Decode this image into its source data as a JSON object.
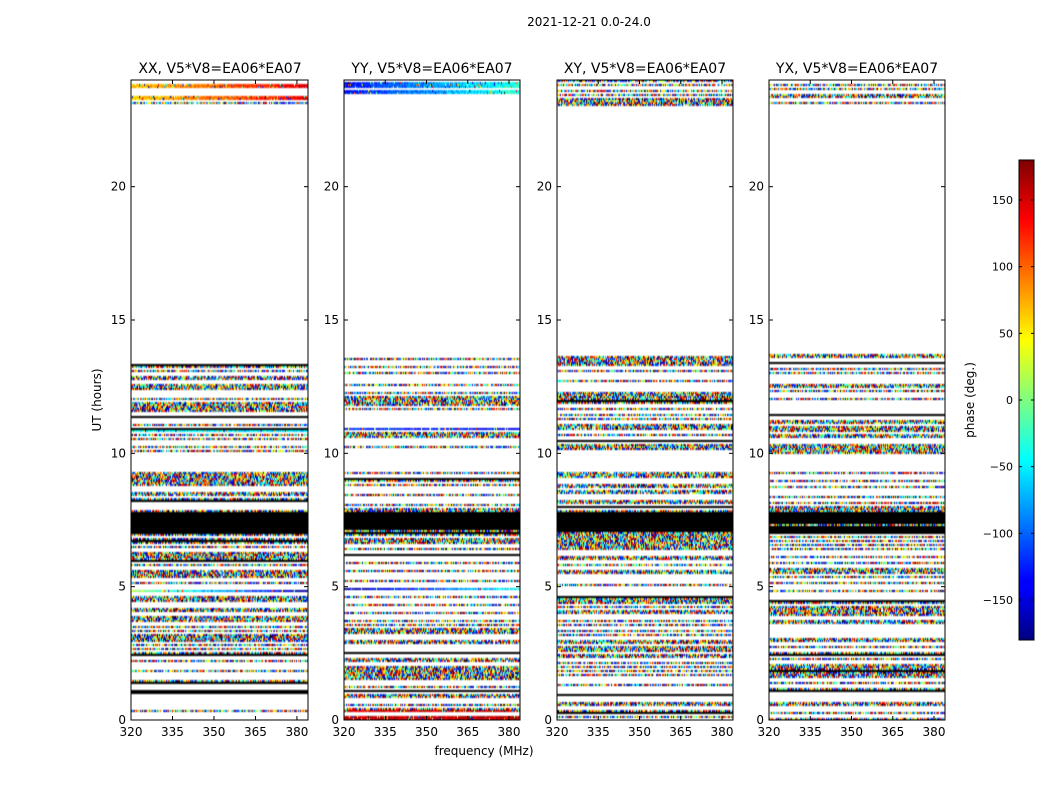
{
  "chart_data": {
    "type": "heatmap",
    "suptitle": "2021-12-21 0.0-24.0",
    "xlabel": "frequency (MHz)",
    "ylabel": "UT (hours)",
    "colorbar_label": "phase (deg.)",
    "colorbar_range": [
      -180,
      180
    ],
    "colorbar_ticks": [
      -150,
      -100,
      -50,
      0,
      50,
      100,
      150
    ],
    "colorbar_tick_labels": [
      "−150",
      "−100",
      "−50",
      "0",
      "50",
      "100",
      "150"
    ],
    "colormap": "jet",
    "xlim": [
      320,
      384
    ],
    "ylim": [
      0,
      24
    ],
    "xticks": [
      320,
      335,
      350,
      365,
      380
    ],
    "yticks": [
      0,
      5,
      10,
      15,
      20
    ],
    "flagged_ranges_hours": [
      [
        9.3,
        10.0
      ],
      [
        13.8,
        23.0
      ]
    ],
    "panels": [
      {
        "title": "XX, V5*V8=EA06*EA07",
        "polarization": "XX",
        "coherent_bands": [
          {
            "t": [
              4.75,
              5.05
            ],
            "phase_start": 20,
            "phase_end": -170
          },
          {
            "t": [
              10.8,
              10.95
            ],
            "phase_start": -40,
            "phase_end": -60
          },
          {
            "t": [
              9.9,
              10.0
            ],
            "phase_start": 40,
            "phase_end": 90
          },
          {
            "t": [
              23.2,
              24.0
            ],
            "phase_start": 60,
            "phase_end": 140
          }
        ]
      },
      {
        "title": "YY, V5*V8=EA06*EA07",
        "polarization": "YY",
        "coherent_bands": [
          {
            "t": [
              4.7,
              5.1
            ],
            "phase_start": -170,
            "phase_end": -40
          },
          {
            "t": [
              10.8,
              10.95
            ],
            "phase_start": -120,
            "phase_end": -140
          },
          {
            "t": [
              23.2,
              24.0
            ],
            "phase_start": -130,
            "phase_end": -30
          },
          {
            "t": [
              0.0,
              0.4
            ],
            "phase_start": 150,
            "phase_end": 160
          }
        ]
      },
      {
        "title": "XY, V5*V8=EA06*EA07",
        "polarization": "XY",
        "coherent_bands": []
      },
      {
        "title": "YX, V5*V8=EA06*EA07",
        "polarization": "YX",
        "coherent_bands": []
      }
    ]
  }
}
